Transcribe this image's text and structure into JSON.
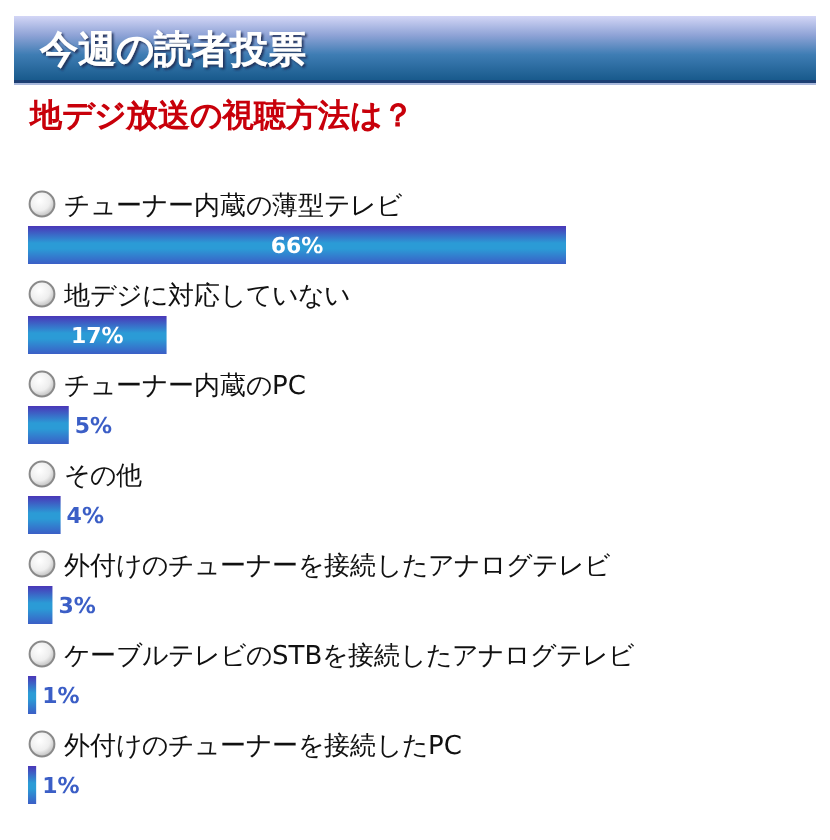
{
  "chart_data": {
    "type": "bar",
    "orientation": "horizontal",
    "title": "今週の読者投票",
    "subtitle": "地デジ放送の視聴方法は？",
    "categories": [
      "チューナー内蔵の薄型テレビ",
      "地デジに対応していない",
      "チューナー内蔵のPC",
      "その他",
      "外付けのチューナーを接続したアナログテレビ",
      "ケーブルテレビのSTBを接続したアナログテレビ",
      "外付けのチューナーを接続したPC"
    ],
    "values": [
      66,
      17,
      5,
      4,
      3,
      1,
      1
    ],
    "value_labels": [
      "66%",
      "17%",
      "5%",
      "4%",
      "3%",
      "1%",
      "1%"
    ],
    "color": "#2b9bd6"
  }
}
